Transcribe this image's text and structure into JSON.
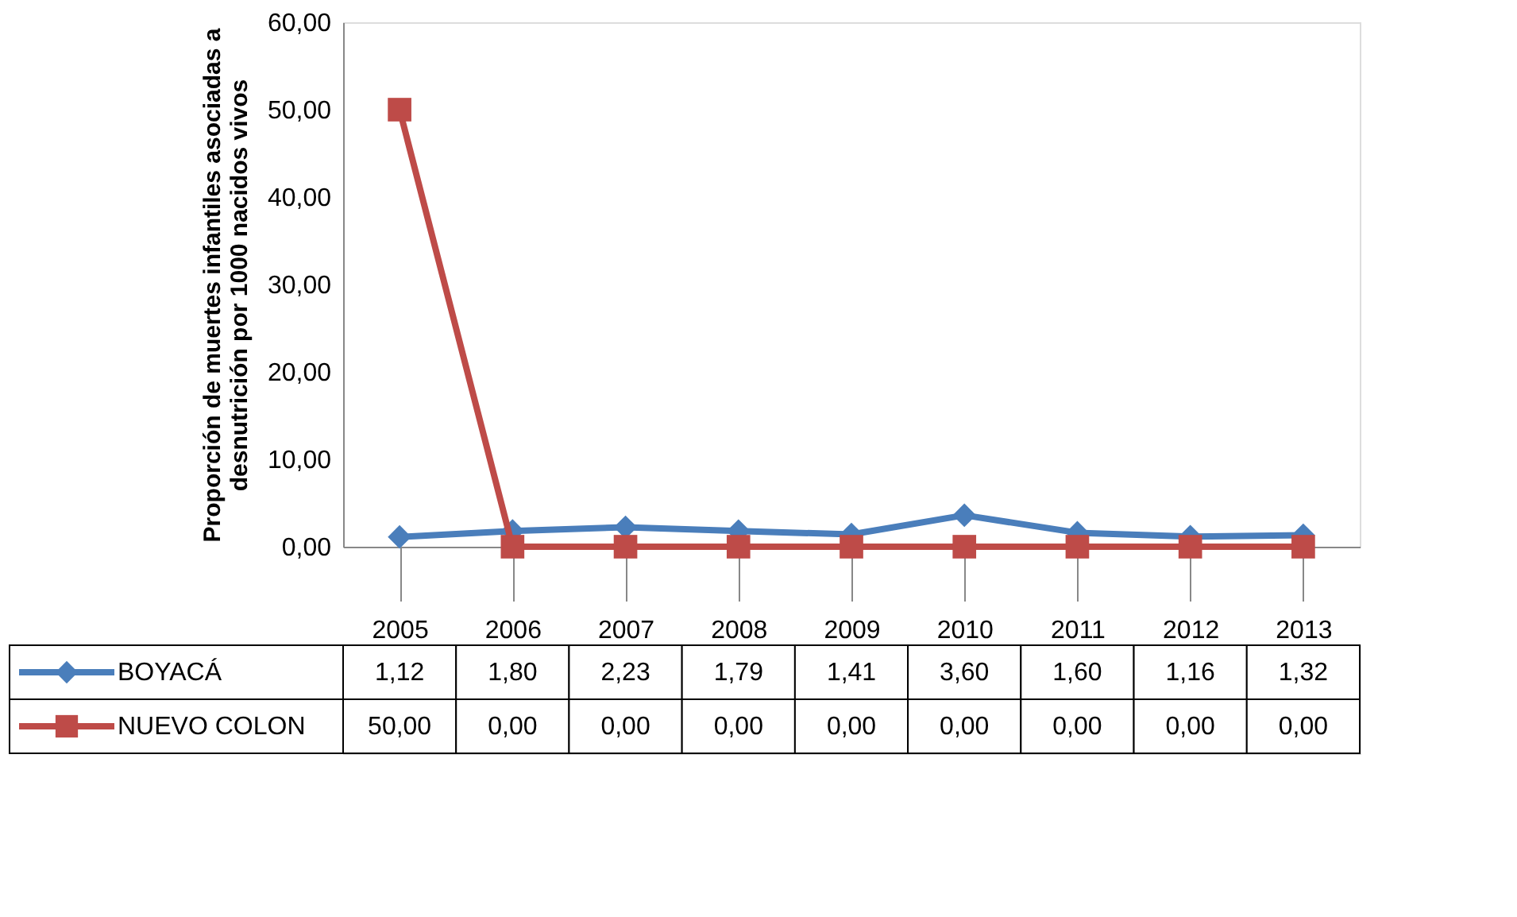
{
  "chart_data": {
    "type": "line",
    "ylabel": "Proporción de muertes infantiles asociadas a desnutrición por 1000 nacidos vivos",
    "categories": [
      "2005",
      "2006",
      "2007",
      "2008",
      "2009",
      "2010",
      "2011",
      "2012",
      "2013"
    ],
    "series": [
      {
        "name": "BOYACÁ",
        "color": "#4a7ebb",
        "marker": "diamond",
        "values": [
          1.12,
          1.8,
          2.23,
          1.79,
          1.41,
          3.6,
          1.6,
          1.16,
          1.32
        ],
        "value_labels": [
          "1,12",
          "1,80",
          "2,23",
          "1,79",
          "1,41",
          "3,60",
          "1,60",
          "1,16",
          "1,32"
        ]
      },
      {
        "name": "NUEVO COLON",
        "color": "#be4b48",
        "marker": "square",
        "values": [
          50.0,
          0.0,
          0.0,
          0.0,
          0.0,
          0.0,
          0.0,
          0.0,
          0.0
        ],
        "value_labels": [
          "50,00",
          "0,00",
          "0,00",
          "0,00",
          "0,00",
          "0,00",
          "0,00",
          "0,00",
          "0,00"
        ]
      }
    ],
    "ylim": [
      0,
      60
    ],
    "yticks": [
      {
        "value": 0,
        "label": "0,00"
      },
      {
        "value": 10,
        "label": "10,00"
      },
      {
        "value": 20,
        "label": "20,00"
      },
      {
        "value": 30,
        "label": "30,00"
      },
      {
        "value": 40,
        "label": "40,00"
      },
      {
        "value": 50,
        "label": "50,00"
      },
      {
        "value": 60,
        "label": "60,00"
      }
    ],
    "grid": false,
    "legend": "bottom",
    "line_style": "solid"
  }
}
